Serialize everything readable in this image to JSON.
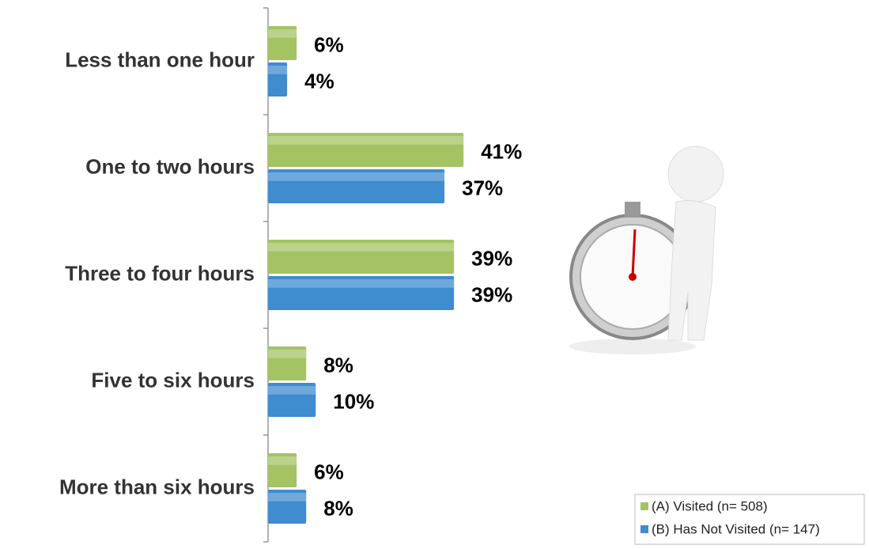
{
  "chart_data": {
    "type": "bar",
    "orientation": "horizontal",
    "categories": [
      "Less than one hour",
      "One to two hours",
      "Three to four hours",
      "Five to six hours",
      "More than six hours"
    ],
    "series": [
      {
        "name": "(A) Visited (n= 508)",
        "color": "#a4c363",
        "values": [
          6,
          41,
          39,
          8,
          6
        ],
        "value_labels": [
          "6%",
          "41%",
          "39%",
          "8%",
          "6%"
        ]
      },
      {
        "name": "(B) Has Not Visited (n= 147)",
        "color": "#3f8ccf",
        "values": [
          4,
          37,
          39,
          10,
          8
        ],
        "value_labels": [
          "4%",
          "37%",
          "39%",
          "10%",
          "8%"
        ]
      }
    ]
  }
}
